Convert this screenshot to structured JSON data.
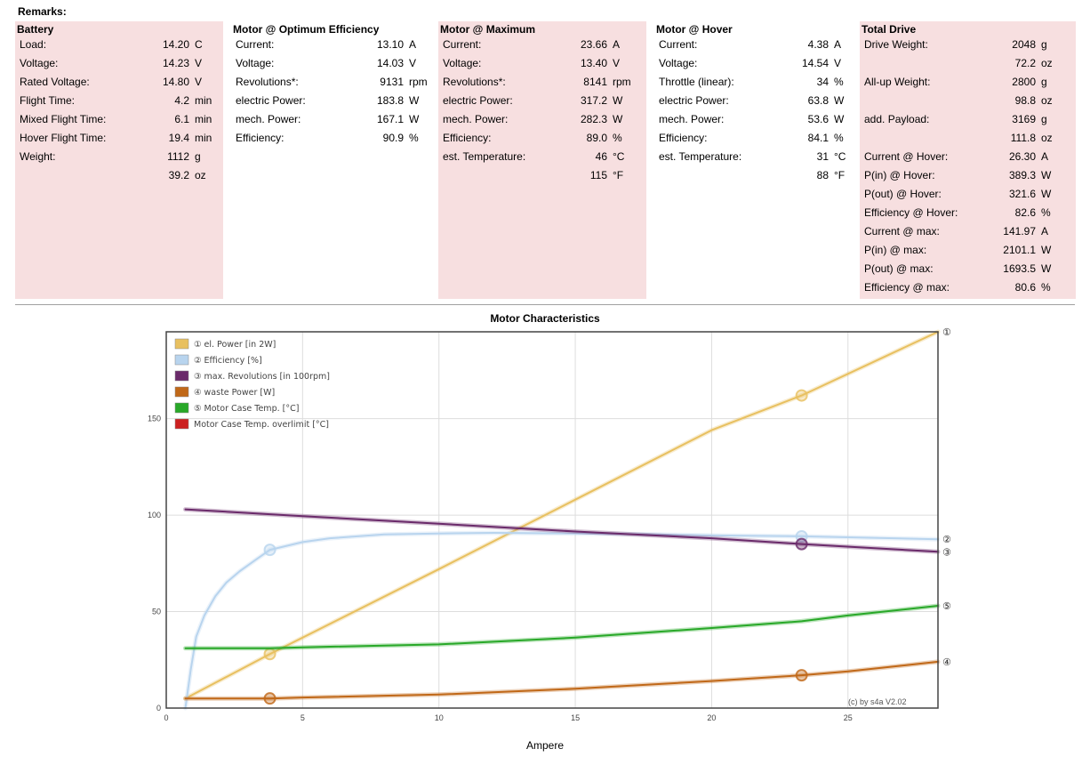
{
  "remarks_label": "Remarks:",
  "panels": [
    {
      "title": "Battery",
      "rows": [
        {
          "label": "Load:",
          "value": "14.20",
          "unit": "C"
        },
        {
          "label": "Voltage:",
          "value": "14.23",
          "unit": "V"
        },
        {
          "label": "Rated Voltage:",
          "value": "14.80",
          "unit": "V"
        },
        {
          "label": "Flight Time:",
          "value": "4.2",
          "unit": "min"
        },
        {
          "label": "Mixed Flight Time:",
          "value": "6.1",
          "unit": "min"
        },
        {
          "label": "Hover Flight Time:",
          "value": "19.4",
          "unit": "min"
        },
        {
          "label": "Weight:",
          "value": "1112",
          "unit": "g"
        },
        {
          "label": "",
          "value": "39.2",
          "unit": "oz"
        }
      ]
    },
    {
      "title": "Motor @ Optimum Efficiency",
      "rows": [
        {
          "label": "Current:",
          "value": "13.10",
          "unit": "A"
        },
        {
          "label": "Voltage:",
          "value": "14.03",
          "unit": "V"
        },
        {
          "label": "Revolutions*:",
          "value": "9131",
          "unit": "rpm"
        },
        {
          "label": "electric Power:",
          "value": "183.8",
          "unit": "W"
        },
        {
          "label": "mech. Power:",
          "value": "167.1",
          "unit": "W"
        },
        {
          "label": "Efficiency:",
          "value": "90.9",
          "unit": "%"
        }
      ]
    },
    {
      "title": "Motor @ Maximum",
      "rows": [
        {
          "label": "Current:",
          "value": "23.66",
          "unit": "A"
        },
        {
          "label": "Voltage:",
          "value": "13.40",
          "unit": "V"
        },
        {
          "label": "Revolutions*:",
          "value": "8141",
          "unit": "rpm"
        },
        {
          "label": "electric Power:",
          "value": "317.2",
          "unit": "W"
        },
        {
          "label": "mech. Power:",
          "value": "282.3",
          "unit": "W"
        },
        {
          "label": "Efficiency:",
          "value": "89.0",
          "unit": "%"
        },
        {
          "label": "est. Temperature:",
          "value": "46",
          "unit": "°C"
        },
        {
          "label": "",
          "value": "115",
          "unit": "°F"
        }
      ]
    },
    {
      "title": "Motor @ Hover",
      "rows": [
        {
          "label": "Current:",
          "value": "4.38",
          "unit": "A"
        },
        {
          "label": "Voltage:",
          "value": "14.54",
          "unit": "V"
        },
        {
          "label": "Throttle (linear):",
          "value": "34",
          "unit": "%"
        },
        {
          "label": "electric Power:",
          "value": "63.8",
          "unit": "W"
        },
        {
          "label": "mech. Power:",
          "value": "53.6",
          "unit": "W"
        },
        {
          "label": "Efficiency:",
          "value": "84.1",
          "unit": "%"
        },
        {
          "label": "est. Temperature:",
          "value": "31",
          "unit": "°C"
        },
        {
          "label": "",
          "value": "88",
          "unit": "°F"
        }
      ]
    },
    {
      "title": "Total Drive",
      "rows": [
        {
          "label": "Drive Weight:",
          "value": "2048",
          "unit": "g"
        },
        {
          "label": "",
          "value": "72.2",
          "unit": "oz"
        },
        {
          "label": "All-up Weight:",
          "value": "2800",
          "unit": "g"
        },
        {
          "label": "",
          "value": "98.8",
          "unit": "oz"
        },
        {
          "label": "add. Payload:",
          "value": "3169",
          "unit": "g"
        },
        {
          "label": "",
          "value": "111.8",
          "unit": "oz"
        },
        {
          "label": "Current @ Hover:",
          "value": "26.30",
          "unit": "A"
        },
        {
          "label": "P(in) @ Hover:",
          "value": "389.3",
          "unit": "W"
        },
        {
          "label": "P(out) @ Hover:",
          "value": "321.6",
          "unit": "W"
        },
        {
          "label": "Efficiency @ Hover:",
          "value": "82.6",
          "unit": "%"
        },
        {
          "label": "Current @ max:",
          "value": "141.97",
          "unit": "A"
        },
        {
          "label": "P(in) @ max:",
          "value": "2101.1",
          "unit": "W"
        },
        {
          "label": "P(out) @ max:",
          "value": "1693.5",
          "unit": "W"
        },
        {
          "label": "Efficiency @ max:",
          "value": "80.6",
          "unit": "%"
        }
      ]
    }
  ],
  "colors": {
    "panel_bg": "#f7dfe0",
    "el_power": "#e8c060",
    "efficiency": "#b8d4ee",
    "revolutions": "#6a2a6a",
    "waste_power": "#c06818",
    "case_temp": "#28a828",
    "overlimit": "#cc2020"
  },
  "chart_data": {
    "type": "line",
    "title": "Motor Characteristics",
    "xlabel": "Ampere",
    "ylabel": "",
    "xlim": [
      0,
      28.3
    ],
    "ylim": [
      0,
      195
    ],
    "xticks": [
      0,
      5,
      10,
      15,
      20,
      25
    ],
    "yticks": [
      0,
      50,
      100,
      150
    ],
    "grid": true,
    "legend_position": "top-left",
    "credit": "(c) by s4a    V2.02",
    "series": [
      {
        "key": "el_power",
        "name": "① el. Power [in 2W]",
        "end_marker": "①",
        "color": "#e8c060",
        "x": [
          0.7,
          3.8,
          10,
          15,
          20,
          23.3,
          28.3
        ],
        "y": [
          5,
          28,
          72,
          108,
          144,
          162,
          195
        ],
        "markers": [
          [
            3.8,
            28
          ],
          [
            23.3,
            162
          ]
        ]
      },
      {
        "key": "efficiency",
        "name": "② Efficiency [%]",
        "end_marker": "②",
        "color": "#b8d4ee",
        "x": [
          0.7,
          0.9,
          1.1,
          1.4,
          1.8,
          2.2,
          2.7,
          3.2,
          3.8,
          5,
          6,
          8,
          10,
          12,
          15,
          18,
          20,
          23.3,
          25,
          28.3
        ],
        "y": [
          0,
          20,
          37,
          48,
          58,
          65,
          71,
          76,
          82,
          86,
          88,
          90,
          90.5,
          90.8,
          90.5,
          90,
          89.5,
          89,
          88.5,
          87.5
        ],
        "markers": [
          [
            3.8,
            82
          ],
          [
            23.3,
            89
          ]
        ]
      },
      {
        "key": "revolutions",
        "name": "③ max. Revolutions [in 100rpm]",
        "end_marker": "③",
        "color": "#6a2a6a",
        "x": [
          0.7,
          5,
          10,
          15,
          20,
          23.3,
          28.3
        ],
        "y": [
          103,
          99.5,
          95.5,
          91.5,
          88,
          85,
          81
        ],
        "markers": [
          [
            23.3,
            85
          ]
        ]
      },
      {
        "key": "waste_power",
        "name": "④ waste Power [W]",
        "end_marker": "④",
        "color": "#c06818",
        "x": [
          0.7,
          3.8,
          5,
          10,
          15,
          20,
          23.3,
          25,
          28.3
        ],
        "y": [
          5,
          5,
          5.5,
          7,
          10,
          14,
          17,
          19,
          24
        ],
        "markers": [
          [
            3.8,
            5
          ],
          [
            23.3,
            17
          ]
        ]
      },
      {
        "key": "case_temp",
        "name": "⑤ Motor Case Temp. [°C]",
        "end_marker": "⑤",
        "color": "#28a828",
        "x": [
          0.7,
          3.8,
          5,
          10,
          15,
          20,
          23.3,
          25,
          28.3
        ],
        "y": [
          31,
          31,
          31.5,
          33,
          36.5,
          41.5,
          45,
          48,
          53
        ],
        "markers": []
      },
      {
        "key": "overlimit",
        "name": "Motor Case Temp. overlimit [°C]",
        "end_marker": "",
        "color": "#cc2020",
        "x": [],
        "y": [],
        "markers": []
      }
    ]
  }
}
